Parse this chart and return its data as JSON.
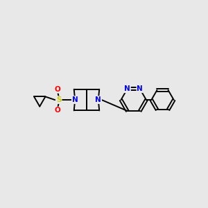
{
  "background_color": "#e8e8e8",
  "bond_color": "#000000",
  "atom_colors": {
    "N": "#0000ff",
    "S": "#cccc00",
    "O": "#ff0000",
    "C": "#000000"
  },
  "figsize": [
    3.0,
    3.0
  ],
  "dpi": 100
}
